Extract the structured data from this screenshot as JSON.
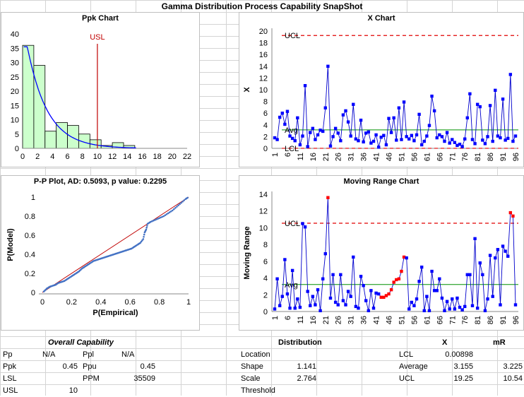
{
  "sheet_title": "Gamma Distribution Process Capability SnapShot",
  "chart_data": [
    {
      "type": "bar",
      "name": "ppk",
      "title": "Ppk Chart",
      "xlim": [
        0,
        22
      ],
      "ylim": [
        0,
        40
      ],
      "x_ticks": [
        0,
        2,
        4,
        6,
        8,
        10,
        12,
        14,
        16,
        18,
        20,
        22
      ],
      "y_ticks": [
        0,
        5,
        10,
        15,
        20,
        25,
        30,
        35,
        40
      ],
      "bins": [
        [
          0,
          1.5,
          36
        ],
        [
          1.5,
          3,
          29
        ],
        [
          3,
          4.5,
          6
        ],
        [
          4.5,
          6,
          9
        ],
        [
          6,
          7.5,
          8
        ],
        [
          7.5,
          9,
          5
        ],
        [
          9,
          10.5,
          3
        ],
        [
          10.5,
          12,
          1
        ],
        [
          12,
          13.5,
          2
        ],
        [
          13.5,
          15,
          1
        ]
      ],
      "usl_label": "USL",
      "usl": 10,
      "bar_color": "#ccffcc",
      "curve_color": "#0000ff",
      "usl_color": "#c00000"
    },
    {
      "type": "line",
      "name": "xchart",
      "title": "X Chart",
      "ylabel": "X",
      "ylim": [
        0,
        20
      ],
      "y_ticks": [
        0,
        2,
        4,
        6,
        8,
        10,
        12,
        14,
        16,
        18,
        20
      ],
      "x_ticks": [
        1,
        6,
        11,
        16,
        21,
        26,
        31,
        36,
        41,
        46,
        51,
        56,
        61,
        66,
        71,
        76,
        81,
        86,
        91,
        96
      ],
      "ucl_label": "UCL",
      "avg_label": "Avg",
      "lcl_label": "LCL",
      "ucl": 19.25,
      "avg": 3.155,
      "lcl": 0.00898,
      "values": [
        1.8,
        1.5,
        5.3,
        6.0,
        4.1,
        6.3,
        2.1,
        1.7,
        1.3,
        5.2,
        0.6,
        2.1,
        10.7,
        0.3,
        2.7,
        3.4,
        1.5,
        2.3,
        3.1,
        2.9,
        6.9,
        14.0,
        0.4,
        2.0,
        3.4,
        2.6,
        1.3,
        5.7,
        6.4,
        4.5,
        2.1,
        7.5,
        1.6,
        1.3,
        4.8,
        1.1,
        2.6,
        2.8,
        0.9,
        1.2,
        2.3,
        0.2,
        1.9,
        2.2,
        0.6,
        5.1,
        2.7,
        5.2,
        1.4,
        6.9,
        1.5,
        7.9,
        2.0,
        1.6,
        2.2,
        1.3,
        2.3,
        5.8,
        0.6,
        1.2,
        2.1,
        3.9,
        8.9,
        6.4,
        1.8,
        2.3,
        2.0,
        1.2,
        2.7,
        0.9,
        1.5,
        1.0,
        0.5,
        0.7,
        0.3,
        1.6,
        5.2,
        9.3,
        1.5,
        0.8,
        7.5,
        7.1,
        1.4,
        0.8,
        2.0,
        7.3,
        1.2,
        9.9,
        2.1,
        1.8,
        8.4,
        1.4,
        1.7,
        12.6,
        1.2,
        2.1
      ],
      "line_color": "#0000cc",
      "marker_color": "#0000ff",
      "limit_color": "#e00000",
      "avg_color": "#009000"
    },
    {
      "type": "scatter",
      "name": "pp",
      "title": "P-P Plot, AD: 0.5093, p value: 0.2295",
      "xlabel": "P(Empirical)",
      "ylabel": "P(Model)",
      "xlim": [
        0,
        1
      ],
      "ylim": [
        0,
        1
      ],
      "x_ticks": [
        "0",
        "0.2",
        "0.4",
        "0.6",
        "0.8",
        "1"
      ],
      "y_ticks": [
        "0",
        "0.2",
        "0.4",
        "0.6",
        "0.8",
        "1"
      ],
      "points_per_model": "sampled",
      "line_color": "#c00000",
      "point_color": "#4472c4"
    },
    {
      "type": "line",
      "name": "mr",
      "title": "Moving Range Chart",
      "ylabel": "Moving Range",
      "ylim": [
        0,
        14
      ],
      "y_ticks": [
        0,
        2,
        4,
        6,
        8,
        10,
        12,
        14
      ],
      "x_ticks": [
        1,
        6,
        11,
        16,
        21,
        26,
        31,
        36,
        41,
        46,
        51,
        56,
        61,
        66,
        71,
        76,
        81,
        86,
        91,
        96
      ],
      "ucl_label": "UCL",
      "avg_label": "Avg",
      "ucl": 10.54,
      "avg": 3.225,
      "values": [
        0.3,
        3.9,
        0.7,
        1.8,
        6.2,
        2.1,
        0.4,
        4.9,
        0.4,
        1.5,
        0.5,
        10.5,
        10.1,
        2.4,
        0.7,
        1.8,
        0.8,
        2.6,
        0.1,
        3.9,
        6.9,
        13.6,
        1.6,
        4.4,
        1.1,
        0.8,
        4.4,
        1.3,
        0.8,
        2.4,
        1.8,
        6.5,
        0.6,
        0.4,
        4.2,
        3.1,
        1.3,
        0.1,
        2.5,
        0.4,
        2.2,
        2.1,
        1.7,
        1.7,
        1.9,
        2.1,
        2.6,
        3.5,
        3.8,
        3.9,
        4.8,
        6.5,
        6.4,
        0.3,
        1.1,
        0.7,
        1.5,
        3.6,
        5.3,
        0.1,
        1.8,
        0.1,
        4.8,
        2.5,
        2.5,
        3.9,
        1.6,
        0.1,
        1.2,
        0.3,
        1.5,
        0.3,
        1.6,
        0.5,
        0.2,
        0.6,
        4.4,
        4.4,
        0.7,
        8.7,
        0.4,
        5.8,
        4.4,
        0.1,
        1.5,
        6.7,
        1.8,
        6.4,
        7.4,
        0.8,
        7.8,
        7.2,
        6.6,
        11.8,
        11.4,
        0.8
      ],
      "red_points": [
        22,
        43,
        44,
        45,
        46,
        47,
        48,
        49,
        50,
        51,
        52,
        94,
        95
      ],
      "line_color": "#0000cc",
      "marker_color": "#0000ff",
      "red_color": "#ff0000",
      "limit_color": "#e00000",
      "avg_color": "#009000"
    }
  ],
  "pp_series": [
    [
      0.01,
      0.01
    ],
    [
      0.03,
      0.04
    ],
    [
      0.05,
      0.06
    ],
    [
      0.07,
      0.07
    ],
    [
      0.09,
      0.08
    ],
    [
      0.11,
      0.1
    ],
    [
      0.13,
      0.11
    ],
    [
      0.15,
      0.12
    ],
    [
      0.17,
      0.14
    ],
    [
      0.19,
      0.16
    ],
    [
      0.21,
      0.18
    ],
    [
      0.23,
      0.2
    ],
    [
      0.25,
      0.22
    ],
    [
      0.27,
      0.25
    ],
    [
      0.29,
      0.27
    ],
    [
      0.31,
      0.29
    ],
    [
      0.33,
      0.31
    ],
    [
      0.35,
      0.33
    ],
    [
      0.37,
      0.34
    ],
    [
      0.39,
      0.35
    ],
    [
      0.41,
      0.36
    ],
    [
      0.43,
      0.37
    ],
    [
      0.45,
      0.38
    ],
    [
      0.47,
      0.39
    ],
    [
      0.49,
      0.4
    ],
    [
      0.51,
      0.41
    ],
    [
      0.53,
      0.42
    ],
    [
      0.55,
      0.43
    ],
    [
      0.57,
      0.44
    ],
    [
      0.59,
      0.45
    ],
    [
      0.61,
      0.46
    ],
    [
      0.63,
      0.48
    ],
    [
      0.65,
      0.5
    ],
    [
      0.67,
      0.52
    ],
    [
      0.69,
      0.56
    ],
    [
      0.7,
      0.63
    ],
    [
      0.71,
      0.66
    ],
    [
      0.72,
      0.72
    ],
    [
      0.74,
      0.74
    ],
    [
      0.77,
      0.76
    ],
    [
      0.8,
      0.78
    ],
    [
      0.83,
      0.8
    ],
    [
      0.86,
      0.83
    ],
    [
      0.89,
      0.86
    ],
    [
      0.92,
      0.9
    ],
    [
      0.95,
      0.94
    ],
    [
      0.98,
      0.98
    ],
    [
      1.0,
      1.0
    ]
  ],
  "capability": {
    "title": "Overall Capability",
    "rows": [
      [
        "Pp",
        "N/A",
        "Ppl",
        "N/A"
      ],
      [
        "Ppk",
        "0.45",
        "Ppu",
        "0.45"
      ],
      [
        "LSL",
        "",
        "PPM",
        "35509"
      ],
      [
        "USL",
        "10",
        "",
        ""
      ]
    ]
  },
  "distribution": {
    "title": "Distribution",
    "rows": [
      [
        "Location",
        ""
      ],
      [
        "Shape",
        "1.141"
      ],
      [
        "Scale",
        "2.764"
      ],
      [
        "Threshold",
        ""
      ]
    ]
  },
  "limits": {
    "col_x": "X",
    "col_mr": "mR",
    "rows": [
      [
        "LCL",
        "0.00898",
        ""
      ],
      [
        "Average",
        "3.155",
        "3.225"
      ],
      [
        "UCL",
        "19.25",
        "10.54"
      ]
    ]
  }
}
